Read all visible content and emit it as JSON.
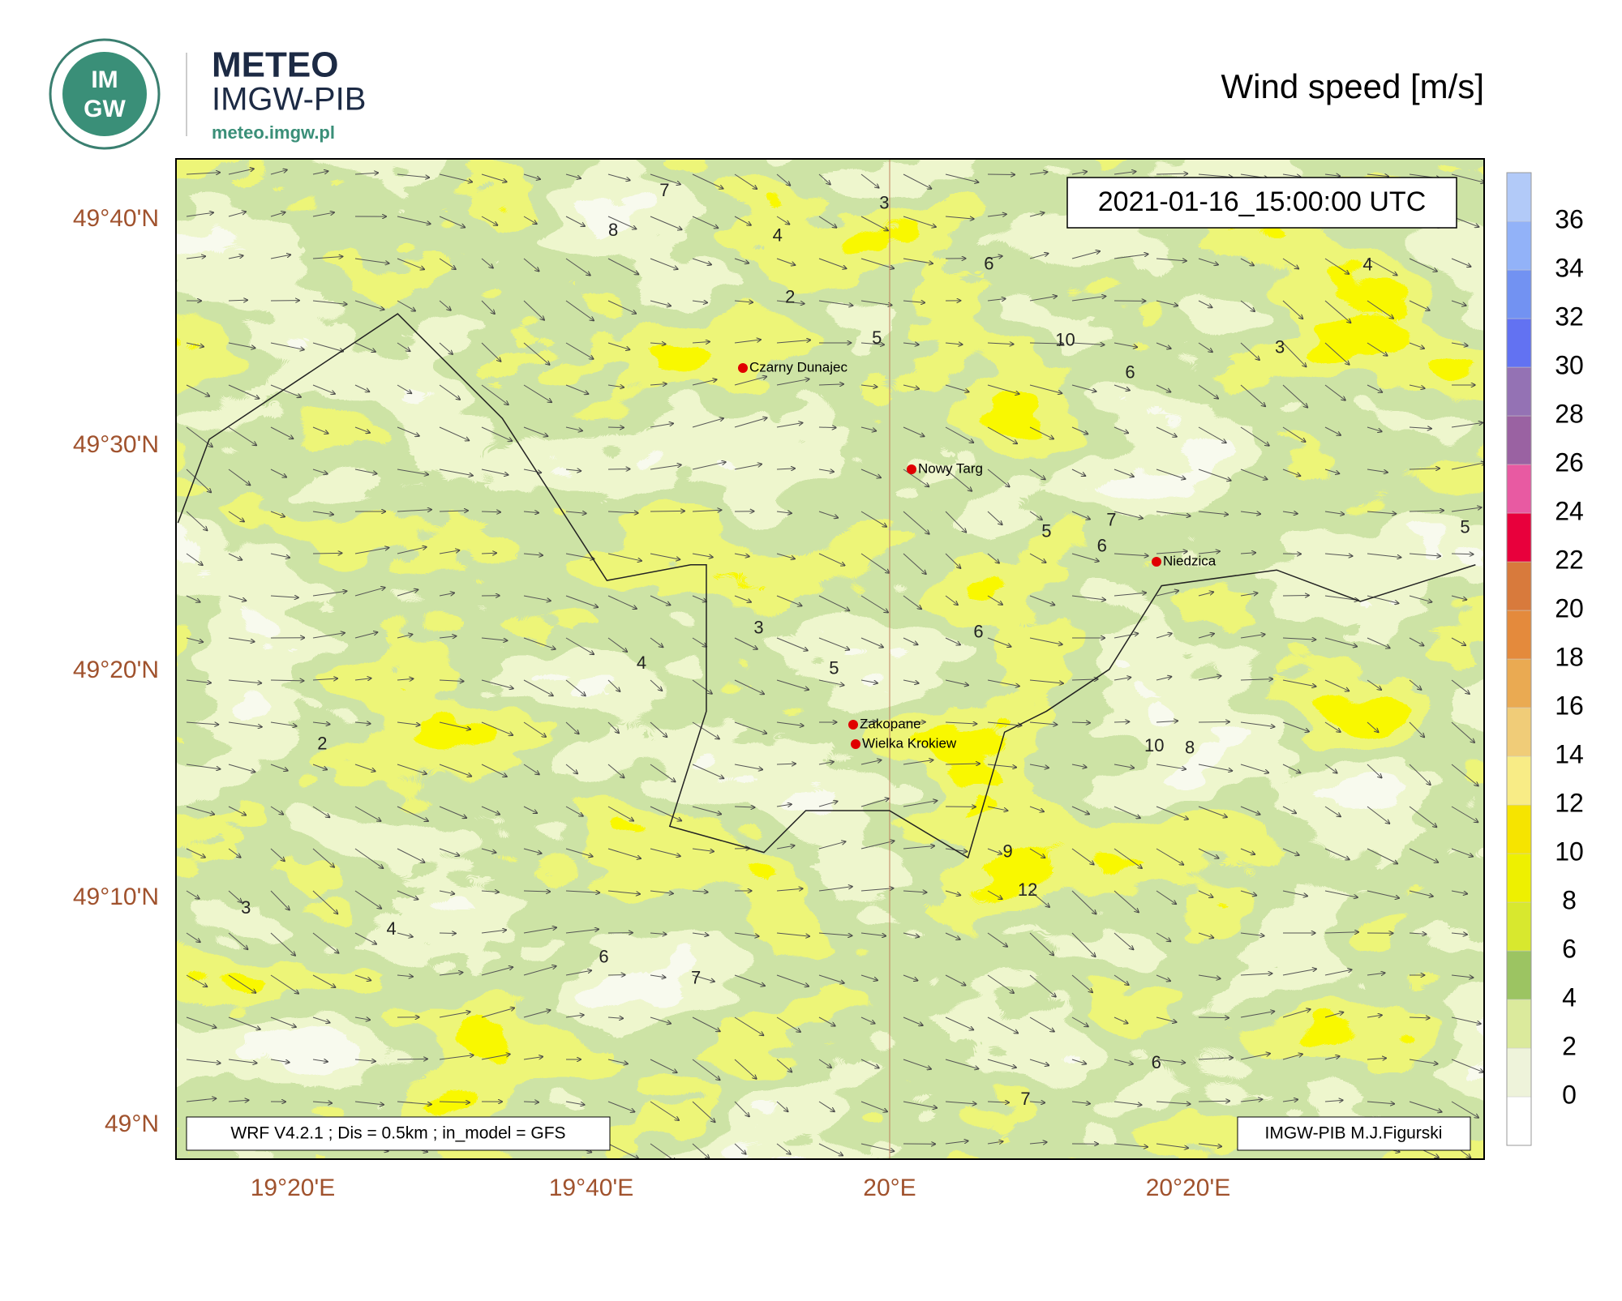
{
  "header": {
    "logo_top": "IM",
    "logo_bottom": "GW",
    "brand": "METEO",
    "brand_sub": "IMGW-PIB",
    "url": "meteo.imgw.pl",
    "title": "Wind speed [m/s]"
  },
  "map": {
    "timestamp": "2021-01-16_15:00:00 UTC",
    "lat_ticks": [
      "49°40'N",
      "49°30'N",
      "49°20'N",
      "49°10'N",
      "49°N"
    ],
    "lon_ticks": [
      "19°20'E",
      "19°40'E",
      "20°E",
      "20°20'E"
    ],
    "cities": [
      "Czarny Dunajec",
      "Nowy Targ",
      "Niedzica",
      "Zakopane",
      "Wielka Krokiew"
    ],
    "contour_labels": [
      7,
      8,
      3,
      4,
      2,
      5,
      6,
      10,
      6,
      5,
      7,
      6,
      6,
      5,
      3,
      4,
      10,
      8,
      9,
      12,
      6,
      7,
      7,
      6,
      5,
      3,
      4,
      2,
      3,
      4
    ],
    "model_note": "WRF V4.2.1 ; Dis = 0.5km ; in_model = GFS",
    "credit": "IMGW-PIB M.J.Figurski"
  },
  "colorbar": {
    "labels": [
      0,
      2,
      4,
      6,
      8,
      10,
      12,
      14,
      16,
      18,
      20,
      22,
      24,
      26,
      28,
      30,
      32,
      34,
      36
    ],
    "colors": [
      "#ffffff",
      "#eef3da",
      "#dbea9c",
      "#9cc462",
      "#d8e82e",
      "#eef000",
      "#f6e400",
      "#f8ec86",
      "#f0cc78",
      "#eaaa52",
      "#e48a3c",
      "#d87a3c",
      "#e8003c",
      "#e85aa2",
      "#9a62a2",
      "#9472b4",
      "#6272f2",
      "#7292f2",
      "#92b2f8",
      "#b2caf8"
    ]
  }
}
